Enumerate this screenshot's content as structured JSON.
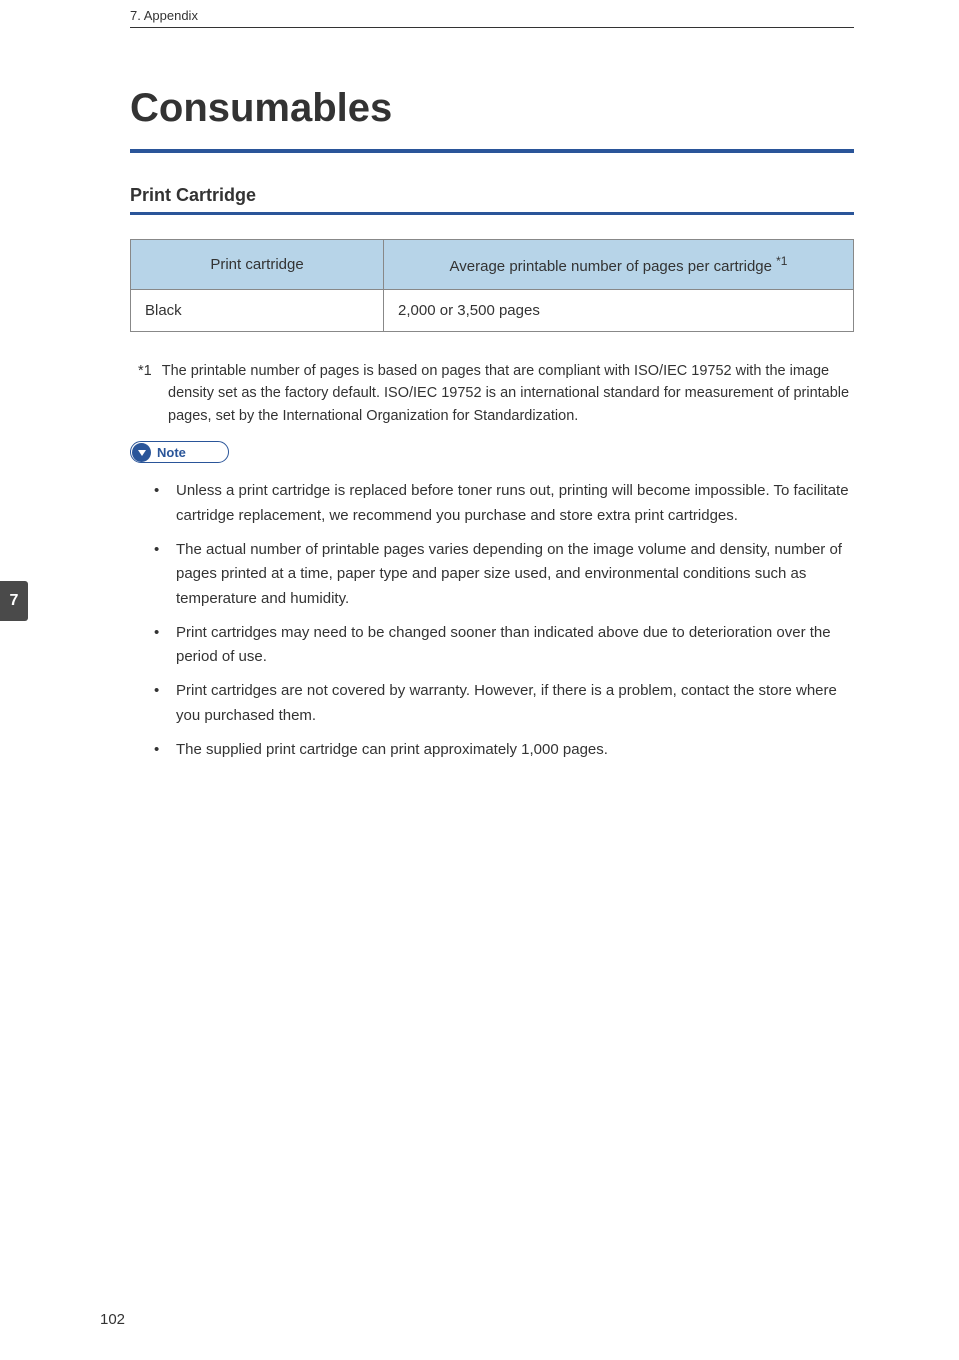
{
  "header": {
    "breadcrumb": "7. Appendix"
  },
  "title": "Consumables",
  "section": {
    "heading": "Print Cartridge"
  },
  "table": {
    "header_bg": "#b7d4e8",
    "border_color": "#888888",
    "columns": [
      {
        "label": "Print cartridge",
        "width_pct": 35
      },
      {
        "label_main": "Average printable number of pages per cartridge ",
        "label_sup": "*1",
        "width_pct": 65
      }
    ],
    "rows": [
      {
        "cartridge": "Black",
        "pages": "2,000 or 3,500 pages"
      }
    ]
  },
  "footnote": {
    "marker": "*1",
    "text": "The printable number of pages is based on pages that are compliant with ISO/IEC 19752 with the image density set as the factory default. ISO/IEC 19752 is an international standard for measurement of printable pages, set by the International Organization for Standardization."
  },
  "note_badge": {
    "label": "Note",
    "border_color": "#2a5599",
    "icon_bg": "#2a5599"
  },
  "notes": [
    "Unless a print cartridge is replaced before toner runs out, printing will become impossible. To facilitate cartridge replacement, we recommend you purchase and store extra print cartridges.",
    "The actual number of printable pages varies depending on the image volume and density, number of pages printed at a time, paper type and paper size used, and environmental conditions such as temperature and humidity.",
    "Print cartridges may need to be changed sooner than indicated above due to deterioration over the period of use.",
    "Print cartridges are not covered by warranty. However, if there is a problem, contact the store where you purchased them.",
    "The supplied print cartridge can print approximately 1,000 pages."
  ],
  "side_tab": {
    "number": "7",
    "bg": "#4a4a4a"
  },
  "page_number": "102",
  "colors": {
    "blue_rule": "#2a5599",
    "text": "#333333",
    "background": "#ffffff"
  },
  "typography": {
    "title_fontsize": 40,
    "section_fontsize": 18,
    "body_fontsize": 15,
    "header_fontsize": 13,
    "footnote_fontsize": 14.5
  }
}
